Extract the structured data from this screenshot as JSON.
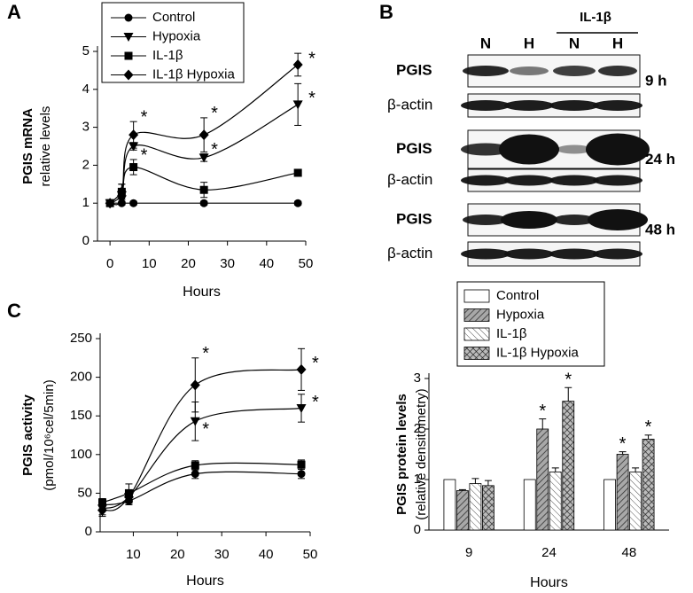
{
  "chart_data": [
    {
      "type": "line",
      "panel_label": "A",
      "ylabel": "PGIS mRNA",
      "ylabel_sub": "relative levels",
      "xlabel": "Hours",
      "x": [
        0,
        3,
        6,
        24,
        48
      ],
      "xlim": [
        -3.2,
        50
      ],
      "xticks": [
        0,
        10,
        20,
        30,
        40,
        50
      ],
      "ylim": [
        0,
        5
      ],
      "yticks": [
        0,
        1,
        2,
        3,
        4,
        5
      ],
      "grid": false,
      "legend": "upper left",
      "series": [
        {
          "name": "Control",
          "color": "#000000",
          "marker": "circle",
          "values": [
            1,
            1,
            1,
            1,
            1
          ],
          "errors": [
            0,
            0.05,
            0.05,
            0.05,
            0.05
          ]
        },
        {
          "name": "Hypoxia",
          "color": "#000000",
          "marker": "triangle-down",
          "values": [
            1,
            1.1,
            2.5,
            2.2,
            3.6
          ],
          "errors": [
            0,
            0.1,
            0.1,
            0.1,
            0.55
          ]
        },
        {
          "name": "IL-1β",
          "color": "#000000",
          "marker": "square",
          "values": [
            1,
            1.3,
            1.95,
            1.35,
            1.8
          ],
          "errors": [
            0,
            0.2,
            0.2,
            0.2,
            0.05
          ]
        },
        {
          "name": "IL-1β Hypoxia",
          "color": "#000000",
          "marker": "diamond",
          "values": [
            1,
            1.3,
            2.8,
            2.8,
            4.65
          ],
          "errors": [
            0,
            0.2,
            0.35,
            0.45,
            0.3
          ]
        }
      ],
      "annotations": [
        {
          "text": "*",
          "series": 3,
          "index": 2
        },
        {
          "text": "*",
          "series": 3,
          "index": 3
        },
        {
          "text": "*",
          "series": 3,
          "index": 4
        },
        {
          "text": "*",
          "series": 1,
          "index": 3
        },
        {
          "text": "*",
          "series": 1,
          "index": 4
        },
        {
          "text": "*",
          "series": 2,
          "index": 2
        }
      ]
    },
    {
      "type": "line",
      "panel_label": "C",
      "ylabel": "PGIS activity",
      "ylabel_sub": "(pmol/10⁶cel/5min)",
      "xlabel": "Hours",
      "x": [
        3,
        9,
        24,
        48
      ],
      "xlim": [
        2.5,
        50
      ],
      "xticks": [
        10,
        20,
        30,
        40,
        50
      ],
      "ylim": [
        0,
        250
      ],
      "yticks": [
        0,
        50,
        100,
        150,
        200,
        250
      ],
      "grid": false,
      "series": [
        {
          "color": "#000000",
          "marker": "circle",
          "values": [
            35,
            40,
            75,
            75
          ],
          "errors": [
            5,
            5,
            6,
            6
          ]
        },
        {
          "color": "#000000",
          "marker": "triangle-down",
          "values": [
            30,
            45,
            143,
            160
          ],
          "errors": [
            8,
            8,
            25,
            18
          ]
        },
        {
          "color": "#000000",
          "marker": "square",
          "values": [
            38,
            50,
            86,
            87
          ],
          "errors": [
            5,
            12,
            6,
            6
          ]
        },
        {
          "color": "#000000",
          "marker": "diamond",
          "values": [
            28,
            45,
            190,
            210
          ],
          "errors": [
            8,
            8,
            35,
            27
          ]
        }
      ],
      "annotations": [
        {
          "text": "*",
          "series": 1,
          "index": 2
        },
        {
          "text": "*",
          "series": 1,
          "index": 3
        },
        {
          "text": "*",
          "series": 3,
          "index": 2
        },
        {
          "text": "*",
          "series": 3,
          "index": 3
        }
      ]
    },
    {
      "type": "bar",
      "ylabel": "PGIS protein levels",
      "ylabel_sub": "(relative densitometry)",
      "xlabel": "Hours",
      "categories": [
        "9",
        "24",
        "48"
      ],
      "ylim": [
        0,
        3
      ],
      "yticks": [
        0,
        1,
        2,
        3
      ],
      "grid": false,
      "legend": "top",
      "series": [
        {
          "name": "Control",
          "color": "#ffffff",
          "pattern": "none",
          "values": [
            1,
            1,
            1
          ],
          "errors": [
            0,
            0,
            0
          ]
        },
        {
          "name": "Hypoxia",
          "color": "#9a9a9a",
          "pattern": "diagonal",
          "values": [
            0.78,
            2.0,
            1.5
          ],
          "errors": [
            0.02,
            0.2,
            0.05
          ]
        },
        {
          "name": "IL-1β",
          "color": "#ffffff",
          "pattern": "diagonal-light",
          "values": [
            0.92,
            1.15,
            1.15
          ],
          "errors": [
            0.1,
            0.08,
            0.08
          ]
        },
        {
          "name": "IL-1β Hypoxia",
          "color": "#8a8a8a",
          "pattern": "cross",
          "values": [
            0.88,
            2.55,
            1.8
          ],
          "errors": [
            0.1,
            0.27,
            0.08
          ]
        }
      ],
      "annotations": [
        {
          "text": "*",
          "series": 1,
          "index": 1
        },
        {
          "text": "*",
          "series": 1,
          "index": 2
        },
        {
          "text": "*",
          "series": 3,
          "index": 1
        },
        {
          "text": "*",
          "series": 3,
          "index": 2
        }
      ]
    }
  ],
  "blot": {
    "panel_label": "B",
    "treatment": "IL-1β",
    "lanes": [
      "N",
      "H",
      "N",
      "H"
    ],
    "panels": [
      {
        "time": "9 h",
        "rows": [
          "PGIS",
          "β-actin"
        ]
      },
      {
        "time": "24 h",
        "rows": [
          "PGIS",
          "β-actin"
        ]
      },
      {
        "time": "48 h",
        "rows": [
          "PGIS",
          "β-actin"
        ]
      }
    ]
  }
}
